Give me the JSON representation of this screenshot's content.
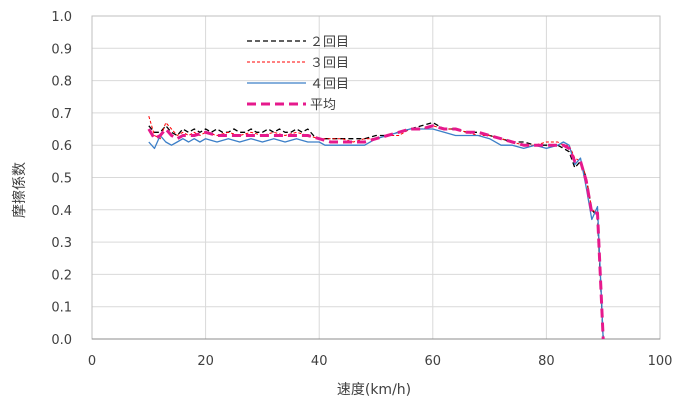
{
  "chart_data": {
    "type": "line",
    "title": "",
    "xlabel": "速度(km/h)",
    "ylabel": "摩擦係数",
    "xlim": [
      0,
      100
    ],
    "ylim": [
      0,
      1.0
    ],
    "xticks": [
      "0",
      "20",
      "40",
      "60",
      "80",
      "100"
    ],
    "yticks": [
      "0.0",
      "0.1",
      "0.2",
      "0.3",
      "0.4",
      "0.5",
      "0.6",
      "0.7",
      "0.8",
      "0.9",
      "1.0"
    ],
    "grid": true,
    "legend_position": "top-left-inside",
    "series": [
      {
        "name": "２回目",
        "color": "#000000",
        "dash": "dashed",
        "x": [
          10,
          11,
          12,
          13,
          14,
          15,
          16,
          17,
          18,
          19,
          20,
          21,
          22,
          23,
          24,
          25,
          26,
          27,
          28,
          29,
          30,
          31,
          32,
          33,
          34,
          35,
          36,
          37,
          38,
          39,
          40,
          42,
          44,
          46,
          48,
          50,
          52,
          54,
          56,
          58,
          60,
          62,
          64,
          66,
          68,
          70,
          72,
          74,
          76,
          78,
          80,
          82,
          83,
          84,
          85,
          86,
          87,
          88,
          89,
          90
        ],
        "y": [
          0.66,
          0.64,
          0.64,
          0.66,
          0.64,
          0.63,
          0.65,
          0.64,
          0.65,
          0.64,
          0.65,
          0.64,
          0.65,
          0.64,
          0.64,
          0.65,
          0.64,
          0.64,
          0.65,
          0.64,
          0.64,
          0.65,
          0.64,
          0.65,
          0.64,
          0.64,
          0.65,
          0.64,
          0.65,
          0.63,
          0.62,
          0.62,
          0.62,
          0.62,
          0.62,
          0.63,
          0.63,
          0.64,
          0.65,
          0.66,
          0.67,
          0.65,
          0.65,
          0.64,
          0.64,
          0.63,
          0.62,
          0.61,
          0.61,
          0.6,
          0.6,
          0.6,
          0.59,
          0.58,
          0.53,
          0.55,
          0.5,
          0.4,
          0.38,
          0.0
        ]
      },
      {
        "name": "３回目",
        "color": "#ff0000",
        "dash": "dashed-fine",
        "x": [
          10,
          11,
          12,
          13,
          14,
          15,
          16,
          17,
          18,
          19,
          20,
          22,
          24,
          26,
          28,
          30,
          32,
          34,
          36,
          38,
          40,
          42,
          44,
          46,
          48,
          50,
          52,
          54,
          56,
          58,
          60,
          62,
          64,
          66,
          68,
          70,
          72,
          74,
          76,
          78,
          80,
          82,
          83,
          84,
          85,
          86,
          87,
          88,
          89,
          90
        ],
        "y": [
          0.69,
          0.63,
          0.62,
          0.67,
          0.65,
          0.63,
          0.64,
          0.63,
          0.64,
          0.63,
          0.64,
          0.63,
          0.64,
          0.63,
          0.64,
          0.63,
          0.64,
          0.63,
          0.64,
          0.63,
          0.62,
          0.62,
          0.62,
          0.61,
          0.62,
          0.62,
          0.63,
          0.63,
          0.65,
          0.65,
          0.66,
          0.65,
          0.65,
          0.64,
          0.63,
          0.63,
          0.62,
          0.61,
          0.6,
          0.6,
          0.61,
          0.61,
          0.6,
          0.6,
          0.56,
          0.55,
          0.5,
          0.4,
          0.39,
          0.0
        ]
      },
      {
        "name": "４回目",
        "color": "#3c7fc8",
        "dash": "solid",
        "x": [
          10,
          11,
          12,
          13,
          14,
          15,
          16,
          17,
          18,
          19,
          20,
          22,
          24,
          26,
          28,
          30,
          32,
          34,
          36,
          38,
          40,
          41,
          42,
          44,
          46,
          48,
          50,
          52,
          54,
          56,
          58,
          60,
          62,
          64,
          66,
          68,
          70,
          72,
          74,
          76,
          78,
          80,
          82,
          83,
          84,
          85,
          86,
          87,
          88,
          89,
          90
        ],
        "y": [
          0.61,
          0.59,
          0.63,
          0.61,
          0.6,
          0.61,
          0.62,
          0.61,
          0.62,
          0.61,
          0.62,
          0.61,
          0.62,
          0.61,
          0.62,
          0.61,
          0.62,
          0.61,
          0.62,
          0.61,
          0.61,
          0.6,
          0.6,
          0.6,
          0.6,
          0.6,
          0.62,
          0.63,
          0.64,
          0.65,
          0.65,
          0.65,
          0.64,
          0.63,
          0.63,
          0.63,
          0.62,
          0.6,
          0.6,
          0.59,
          0.6,
          0.59,
          0.6,
          0.61,
          0.6,
          0.54,
          0.56,
          0.47,
          0.37,
          0.41,
          0.0
        ]
      },
      {
        "name": "平均",
        "color": "#e6198c",
        "dash": "dashed-bold",
        "x": [
          10,
          11,
          12,
          13,
          14,
          15,
          16,
          18,
          20,
          22,
          24,
          26,
          28,
          30,
          32,
          34,
          36,
          38,
          40,
          42,
          44,
          46,
          48,
          50,
          52,
          54,
          56,
          58,
          60,
          62,
          64,
          66,
          68,
          70,
          72,
          74,
          76,
          78,
          80,
          82,
          83,
          84,
          85,
          86,
          87,
          88,
          89,
          90
        ],
        "y": [
          0.65,
          0.62,
          0.63,
          0.65,
          0.63,
          0.62,
          0.63,
          0.63,
          0.64,
          0.63,
          0.63,
          0.63,
          0.63,
          0.63,
          0.63,
          0.63,
          0.63,
          0.63,
          0.62,
          0.61,
          0.61,
          0.61,
          0.61,
          0.62,
          0.63,
          0.64,
          0.65,
          0.65,
          0.66,
          0.65,
          0.65,
          0.64,
          0.64,
          0.63,
          0.62,
          0.61,
          0.6,
          0.6,
          0.6,
          0.6,
          0.6,
          0.59,
          0.55,
          0.55,
          0.49,
          0.39,
          0.39,
          0.0
        ]
      }
    ]
  }
}
